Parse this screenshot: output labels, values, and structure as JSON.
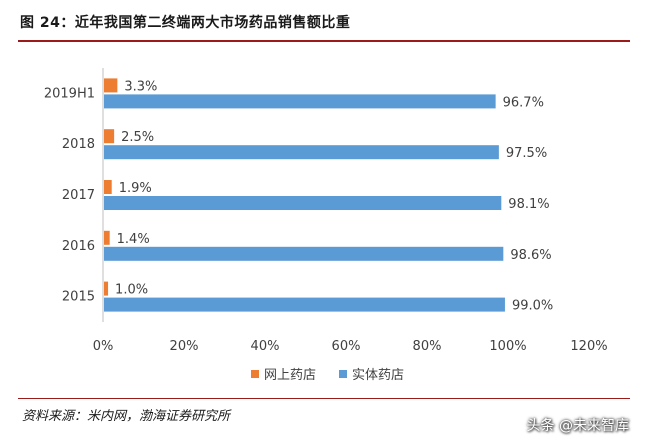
{
  "title": "图 24：近年我国第二终端两大市场药品销售额比重",
  "source": "资料来源：米内网，渤海证券研究所",
  "watermark": "头条 @未来智库",
  "colors": {
    "online": "#ED7D31",
    "physical": "#5B9BD5",
    "axis": "#BFBFBF",
    "rule": "#9B1B1B"
  },
  "chart_data": {
    "type": "bar",
    "orientation": "horizontal",
    "categories": [
      "2019H1",
      "2018",
      "2017",
      "2016",
      "2015"
    ],
    "series": [
      {
        "name": "网上药店",
        "values": [
          3.3,
          2.5,
          1.9,
          1.4,
          1.0
        ],
        "labels": [
          "3.3%",
          "2.5%",
          "1.9%",
          "1.4%",
          "1.0%"
        ]
      },
      {
        "name": "实体药店",
        "values": [
          96.7,
          97.5,
          98.1,
          98.6,
          99.0
        ],
        "labels": [
          "96.7%",
          "97.5%",
          "98.1%",
          "98.6%",
          "99.0%"
        ]
      }
    ],
    "xlim": [
      0,
      120
    ],
    "xticks": [
      "0%",
      "20%",
      "40%",
      "60%",
      "80%",
      "100%",
      "120%"
    ],
    "legend_position": "bottom",
    "grid": false
  }
}
